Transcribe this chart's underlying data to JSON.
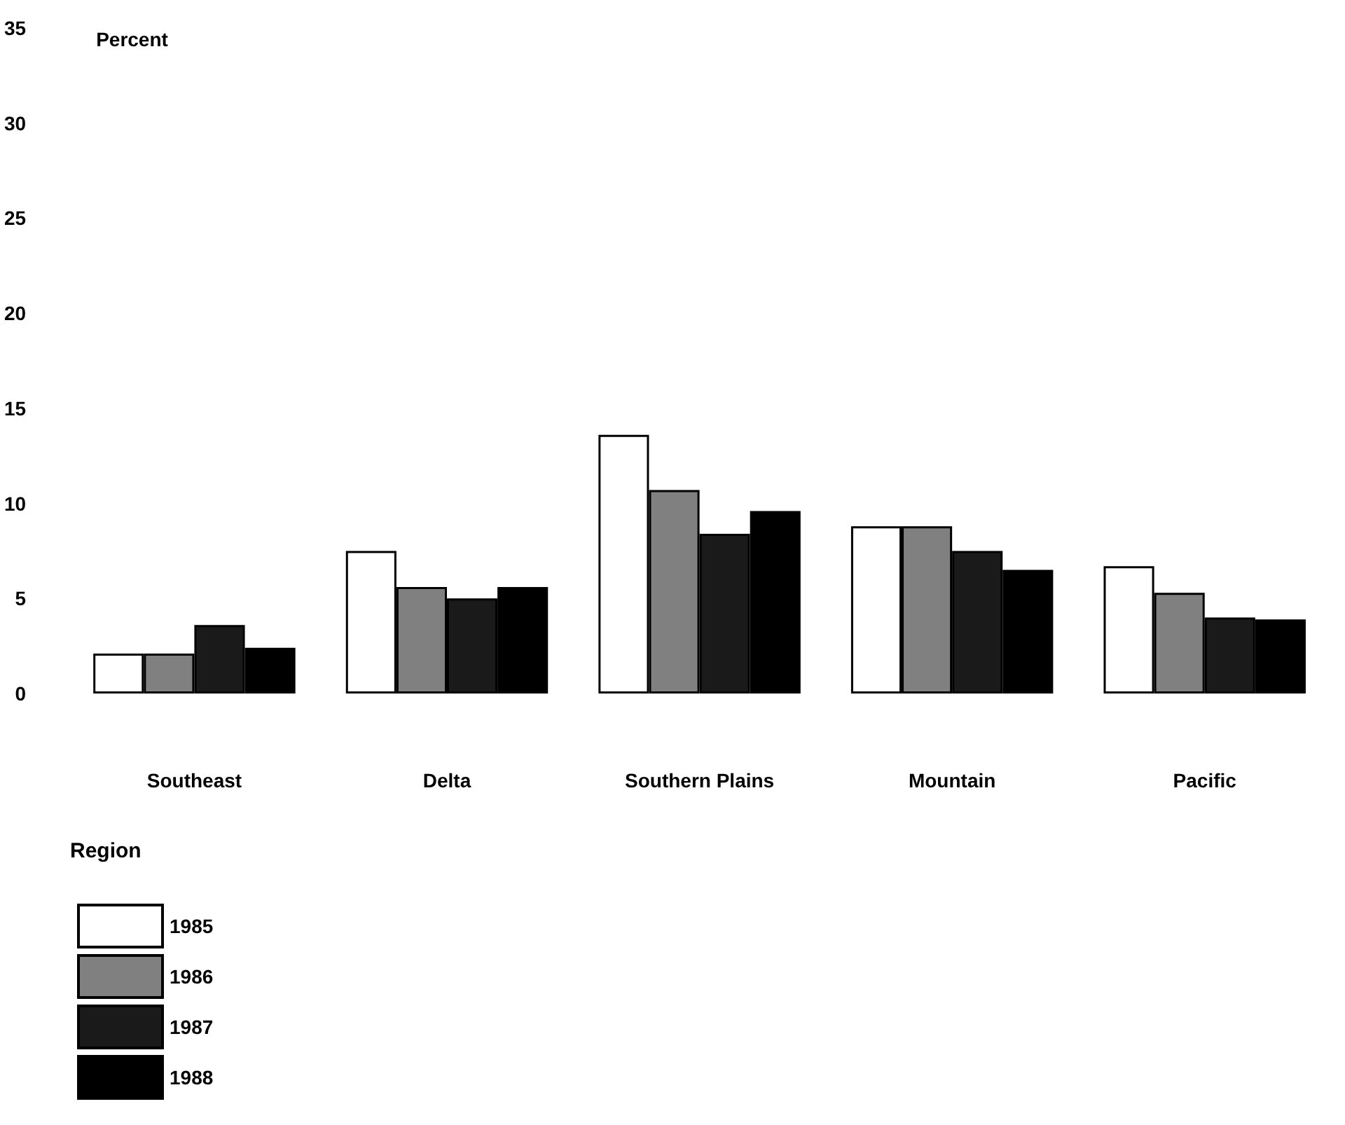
{
  "chart_data": {
    "type": "bar",
    "ylabel": "Percent",
    "legend_title": "Region",
    "categories": [
      "Southeast",
      "Delta",
      "Southern Plains",
      "Mountain",
      "Pacific"
    ],
    "series": [
      {
        "name": "1985",
        "color": "#ffffff",
        "values": [
          2.1,
          7.5,
          13.6,
          8.8,
          6.7
        ]
      },
      {
        "name": "1986",
        "color": "#808080",
        "values": [
          2.1,
          5.6,
          10.7,
          8.8,
          5.3
        ]
      },
      {
        "name": "1987",
        "color": "#1a1a1a",
        "values": [
          3.6,
          5.0,
          8.4,
          7.5,
          4.0
        ]
      },
      {
        "name": "1988",
        "color": "#000000",
        "values": [
          2.4,
          5.6,
          9.6,
          6.5,
          3.9
        ]
      }
    ],
    "ylim": [
      0,
      35
    ],
    "yticks": [
      0,
      5,
      10,
      15,
      20,
      25,
      30,
      35
    ],
    "grid": false,
    "legend": "bottom left"
  }
}
